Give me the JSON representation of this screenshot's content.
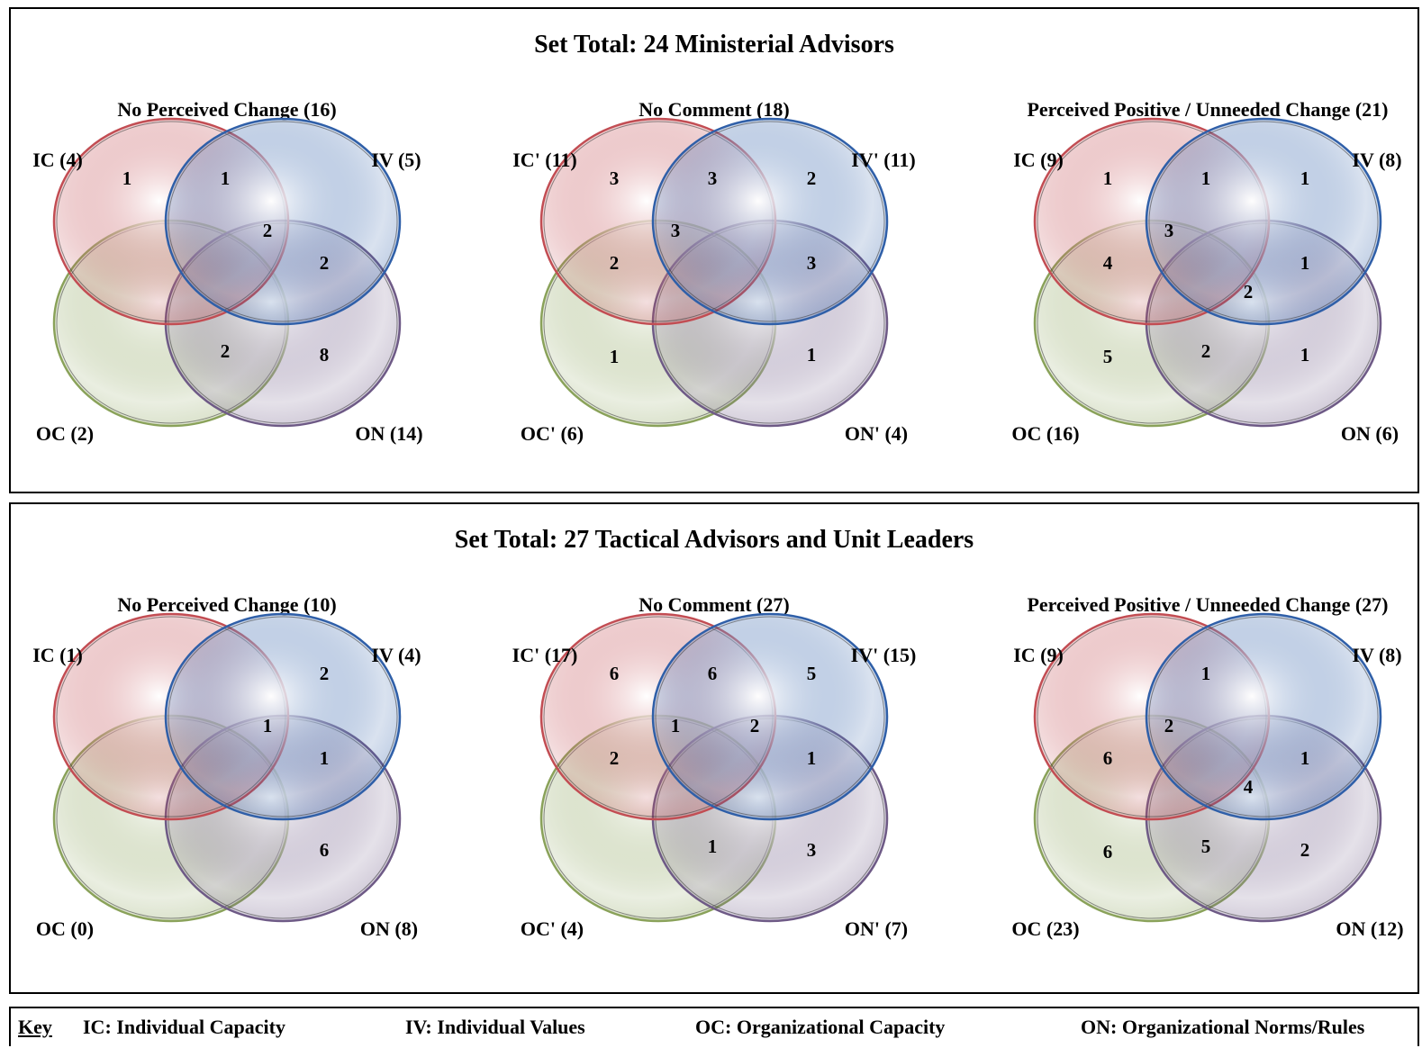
{
  "sets": [
    {
      "title": "Set Total: 24 Ministerial Advisors",
      "diagrams": [
        {
          "title": "No Perceived Change (16)",
          "labels": {
            "ic": "IC (4)",
            "iv": "IV (5)",
            "oc": "OC (2)",
            "on": "ON (14)"
          },
          "regions": [
            {
              "sets": [
                "IC"
              ],
              "value": "1"
            },
            {
              "sets": [
                "IC",
                "IV"
              ],
              "value": "1"
            },
            {
              "sets": [
                "IC",
                "IV",
                "ON"
              ],
              "value": "2"
            },
            {
              "sets": [
                "IV",
                "ON"
              ],
              "value": "2"
            },
            {
              "sets": [
                "OC",
                "ON"
              ],
              "value": "2"
            },
            {
              "sets": [
                "ON"
              ],
              "value": "8"
            }
          ]
        },
        {
          "title": "No Comment (18)",
          "labels": {
            "ic": "IC' (11)",
            "iv": "IV' (11)",
            "oc": "OC' (6)",
            "on": "ON' (4)"
          },
          "regions": [
            {
              "sets": [
                "IC"
              ],
              "value": "3"
            },
            {
              "sets": [
                "IC",
                "IV"
              ],
              "value": "3"
            },
            {
              "sets": [
                "IV"
              ],
              "value": "2"
            },
            {
              "sets": [
                "IC",
                "IV",
                "OC"
              ],
              "value": "3"
            },
            {
              "sets": [
                "IC",
                "OC"
              ],
              "value": "2"
            },
            {
              "sets": [
                "IV",
                "ON"
              ],
              "value": "3"
            },
            {
              "sets": [
                "OC"
              ],
              "value": "1"
            },
            {
              "sets": [
                "ON"
              ],
              "value": "1"
            }
          ]
        },
        {
          "title": "Perceived Positive / Unneeded Change (21)",
          "labels": {
            "ic": "IC (9)",
            "iv": "IV (8)",
            "oc": "OC (16)",
            "on": "ON (6)"
          },
          "regions": [
            {
              "sets": [
                "IC"
              ],
              "value": "1"
            },
            {
              "sets": [
                "IC",
                "IV"
              ],
              "value": "1"
            },
            {
              "sets": [
                "IV"
              ],
              "value": "1"
            },
            {
              "sets": [
                "IC",
                "IV",
                "OC"
              ],
              "value": "3"
            },
            {
              "sets": [
                "IC",
                "OC"
              ],
              "value": "4"
            },
            {
              "sets": [
                "IV",
                "ON"
              ],
              "value": "1"
            },
            {
              "sets": [
                "IV",
                "OC",
                "ON"
              ],
              "value": "2"
            },
            {
              "sets": [
                "OC"
              ],
              "value": "5"
            },
            {
              "sets": [
                "OC",
                "ON"
              ],
              "value": "2"
            },
            {
              "sets": [
                "ON"
              ],
              "value": "1"
            }
          ]
        }
      ]
    },
    {
      "title": "Set Total: 27 Tactical Advisors and Unit Leaders",
      "diagrams": [
        {
          "title": "No Perceived Change (10)",
          "labels": {
            "ic": "IC (1)",
            "iv": "IV (4)",
            "oc": "OC (0)",
            "on": "ON (8)"
          },
          "regions": [
            {
              "sets": [
                "IV"
              ],
              "value": "2"
            },
            {
              "sets": [
                "IC",
                "IV",
                "ON"
              ],
              "value": "1"
            },
            {
              "sets": [
                "IV",
                "ON"
              ],
              "value": "1"
            },
            {
              "sets": [
                "ON"
              ],
              "value": "6"
            }
          ]
        },
        {
          "title": "No Comment (27)",
          "labels": {
            "ic": "IC' (17)",
            "iv": "IV' (15)",
            "oc": "OC' (4)",
            "on": "ON' (7)"
          },
          "regions": [
            {
              "sets": [
                "IC"
              ],
              "value": "6"
            },
            {
              "sets": [
                "IC",
                "IV"
              ],
              "value": "6"
            },
            {
              "sets": [
                "IV"
              ],
              "value": "5"
            },
            {
              "sets": [
                "IC",
                "IV",
                "OC"
              ],
              "value": "1"
            },
            {
              "sets": [
                "IC",
                "IV",
                "ON"
              ],
              "value": "2"
            },
            {
              "sets": [
                "IC",
                "OC"
              ],
              "value": "2"
            },
            {
              "sets": [
                "IV",
                "ON"
              ],
              "value": "1"
            },
            {
              "sets": [
                "OC",
                "ON"
              ],
              "value": "1"
            },
            {
              "sets": [
                "ON"
              ],
              "value": "3"
            }
          ]
        },
        {
          "title": "Perceived Positive / Unneeded Change (27)",
          "labels": {
            "ic": "IC (9)",
            "iv": "IV (8)",
            "oc": "OC (23)",
            "on": "ON (12)"
          },
          "regions": [
            {
              "sets": [
                "IC",
                "IV"
              ],
              "value": "1"
            },
            {
              "sets": [
                "IC",
                "IV",
                "OC"
              ],
              "value": "2"
            },
            {
              "sets": [
                "IC",
                "OC"
              ],
              "value": "6"
            },
            {
              "sets": [
                "IV",
                "ON"
              ],
              "value": "1"
            },
            {
              "sets": [
                "IV",
                "OC",
                "ON"
              ],
              "value": "4"
            },
            {
              "sets": [
                "OC"
              ],
              "value": "6"
            },
            {
              "sets": [
                "OC",
                "ON"
              ],
              "value": "5"
            },
            {
              "sets": [
                "ON"
              ],
              "value": "2"
            }
          ]
        }
      ]
    }
  ],
  "colors": {
    "ic": "#c24d53",
    "iv": "#2f5fa8",
    "oc": "#8aa25a",
    "on": "#6e5a86"
  },
  "key": {
    "label": "Key",
    "items": [
      "IC: Individual Capacity",
      "IV: Individual Values",
      "OC: Organizational Capacity",
      "ON: Organizational Norms/Rules"
    ]
  }
}
